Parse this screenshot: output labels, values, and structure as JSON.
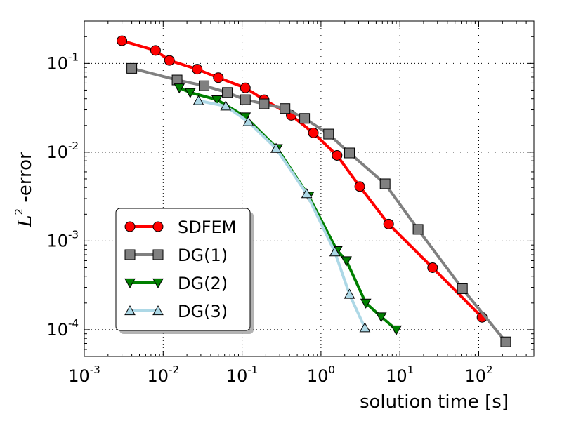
{
  "chart_data": {
    "type": "line",
    "xscale": "log",
    "yscale": "log",
    "xlim": [
      0.001,
      500
    ],
    "ylim": [
      5e-05,
      0.3
    ],
    "xlabel": "solution time [s]",
    "ylabel_symbol": "L",
    "ylabel_exponent": "2",
    "ylabel_suffix": " -error",
    "grid": true,
    "legend_position": "lower-left",
    "x_ticks": [
      {
        "value": 0.001,
        "base": "10",
        "exp": "-3"
      },
      {
        "value": 0.01,
        "base": "10",
        "exp": "-2"
      },
      {
        "value": 0.1,
        "base": "10",
        "exp": "-1"
      },
      {
        "value": 1,
        "base": "10",
        "exp": "0"
      },
      {
        "value": 10,
        "base": "10",
        "exp": "1"
      },
      {
        "value": 100,
        "base": "10",
        "exp": "2"
      }
    ],
    "y_ticks": [
      {
        "value": 0.0001,
        "base": "10",
        "exp": "-4"
      },
      {
        "value": 0.001,
        "base": "10",
        "exp": "-3"
      },
      {
        "value": 0.01,
        "base": "10",
        "exp": "-2"
      },
      {
        "value": 0.1,
        "base": "10",
        "exp": "-1"
      }
    ],
    "series": [
      {
        "name": "SDFEM",
        "color": "#ff0000",
        "marker": "circle",
        "line_color": "#ff0000",
        "x": [
          0.003,
          0.008,
          0.012,
          0.027,
          0.05,
          0.11,
          0.19,
          0.42,
          0.8,
          1.6,
          3.1,
          7.2,
          26,
          110
        ],
        "y": [
          0.18,
          0.14,
          0.108,
          0.086,
          0.069,
          0.053,
          0.039,
          0.026,
          0.0165,
          0.0092,
          0.0041,
          0.00155,
          0.0005,
          0.000138
        ]
      },
      {
        "name": "DG(1)",
        "color": "#808080",
        "marker": "square",
        "line_color": "#808080",
        "x": [
          0.004,
          0.015,
          0.033,
          0.065,
          0.11,
          0.19,
          0.35,
          0.62,
          1.25,
          2.3,
          6.5,
          17,
          62,
          220
        ],
        "y": [
          0.088,
          0.065,
          0.056,
          0.047,
          0.039,
          0.035,
          0.031,
          0.024,
          0.016,
          0.0098,
          0.0044,
          0.00135,
          0.00029,
          7.3e-05
        ]
      },
      {
        "name": "DG(2)",
        "color": "#008000",
        "marker": "triangle-down",
        "line_color": "#008000",
        "x": [
          0.016,
          0.022,
          0.048,
          0.11,
          0.28,
          0.7,
          1.6,
          2.1,
          3.7,
          5.8,
          9
        ],
        "y": [
          0.053,
          0.047,
          0.039,
          0.025,
          0.011,
          0.0032,
          0.00078,
          0.0006,
          0.0002,
          0.00014,
          0.0001
        ]
      },
      {
        "name": "DG(3)",
        "color": "#add8e6",
        "marker": "triangle-up",
        "line_color": "#add8e6",
        "x": [
          0.028,
          0.062,
          0.12,
          0.27,
          0.66,
          1.5,
          2.3,
          3.6
        ],
        "y": [
          0.038,
          0.033,
          0.022,
          0.011,
          0.0034,
          0.00075,
          0.00025,
          0.000105
        ]
      }
    ]
  }
}
